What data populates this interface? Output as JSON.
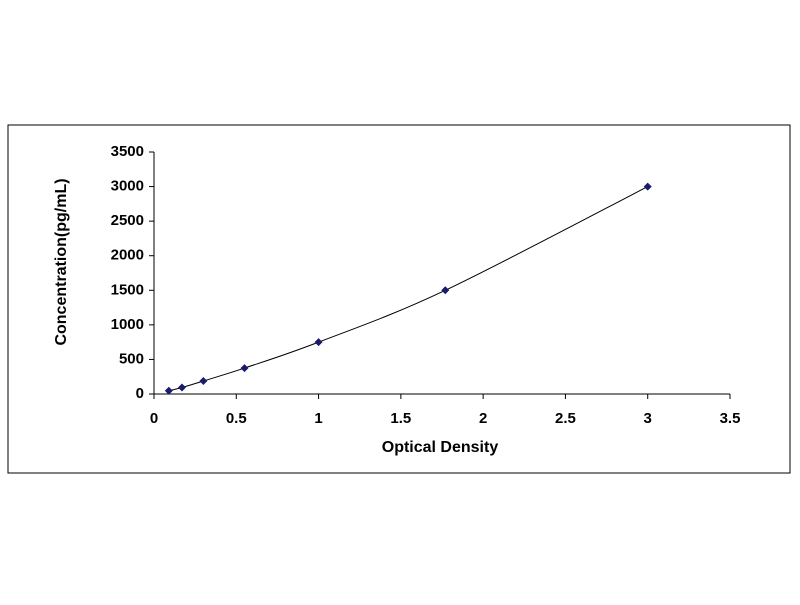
{
  "chart_data": {
    "type": "scatter",
    "xlabel": "Optical Density",
    "ylabel": "Concentration(pg/mL)",
    "x": [
      0.09,
      0.17,
      0.3,
      0.55,
      1.0,
      1.77,
      3.0
    ],
    "values": [
      47,
      94,
      188,
      375,
      750,
      1500,
      3000
    ],
    "color": "#1a1a6e",
    "smooth_line": true,
    "xlim": [
      0,
      3.5
    ],
    "xticks": [
      0,
      0.5,
      1,
      1.5,
      2,
      2.5,
      3,
      3.5
    ],
    "ylim": [
      0,
      3500
    ],
    "yticks": [
      0,
      500,
      1000,
      1500,
      2000,
      2500,
      3000,
      3500
    ],
    "grid": false
  }
}
